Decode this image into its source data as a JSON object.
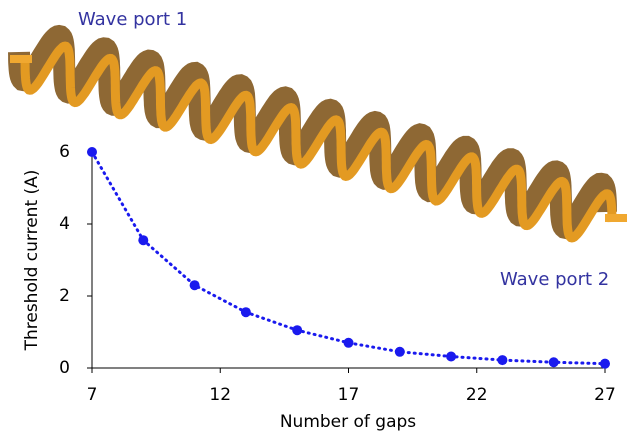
{
  "chart_data": {
    "type": "scatter",
    "x_label": "Number of gaps",
    "y_label": "Threshold current (A)",
    "annotations": [
      "Wave port 1",
      "Wave port 2"
    ],
    "series": [
      {
        "color": "#1a1aee",
        "x": [
          7,
          9,
          11,
          13,
          15,
          17,
          19,
          21,
          23,
          25,
          27
        ],
        "values": [
          6.0,
          3.55,
          2.3,
          1.55,
          1.05,
          0.7,
          0.45,
          0.32,
          0.22,
          0.16,
          0.12
        ]
      }
    ],
    "xlim": [
      7,
      27
    ],
    "xticks": [
      7,
      12,
      17,
      22,
      27
    ],
    "ylim": [
      0,
      6
    ],
    "yticks": [
      0,
      2,
      4,
      6
    ]
  }
}
